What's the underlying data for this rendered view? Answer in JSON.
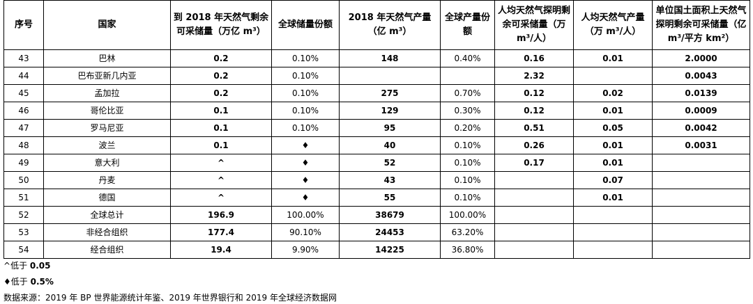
{
  "headers": [
    "序号",
    "国家",
    "到 2018 年天然气剩余可采储量（万亿 m³）",
    "全球储量份额",
    "2018 年天然气产量（亿 m³）",
    "全球产量份额",
    "人均天然气探明剩余可采储量（万 m³/人）",
    "人均天然气产量（万 m³/人）",
    "单位国土面积上天然气探明剩余可采储量（亿 m³/平方 km²）"
  ],
  "rows": [
    [
      "43",
      "巴林",
      "0.2",
      "0.10%",
      "148",
      "0.40%",
      "0.16",
      "0.01",
      "2.0000"
    ],
    [
      "44",
      "巴布亚新几内亚",
      "0.2",
      "0.10%",
      "",
      "",
      "2.32",
      "",
      "0.0043"
    ],
    [
      "45",
      "孟加拉",
      "0.2",
      "0.10%",
      "275",
      "0.70%",
      "0.12",
      "0.02",
      "0.0139"
    ],
    [
      "46",
      "哥伦比亚",
      "0.1",
      "0.10%",
      "129",
      "0.30%",
      "0.12",
      "0.01",
      "0.0009"
    ],
    [
      "47",
      "罗马尼亚",
      "0.1",
      "0.10%",
      "95",
      "0.20%",
      "0.51",
      "0.05",
      "0.0042"
    ],
    [
      "48",
      "波兰",
      "0.1",
      "♦",
      "40",
      "0.10%",
      "0.26",
      "0.01",
      "0.0031"
    ],
    [
      "49",
      "意大利",
      "^",
      "♦",
      "52",
      "0.10%",
      "0.17",
      "0.01",
      ""
    ],
    [
      "50",
      "丹麦",
      "^",
      "♦",
      "43",
      "0.10%",
      "",
      "0.07",
      ""
    ],
    [
      "51",
      "德国",
      "^",
      "♦",
      "55",
      "0.10%",
      "",
      "0.01",
      ""
    ],
    [
      "52",
      "全球总计",
      "196.9",
      "100.00%",
      "38679",
      "100.00%",
      "",
      "",
      ""
    ],
    [
      "53",
      "非经合组织",
      "177.4",
      "90.10%",
      "24453",
      "63.20%",
      "",
      "",
      ""
    ],
    [
      "54",
      "经合组织",
      "19.4",
      "9.90%",
      "14225",
      "36.80%",
      "",
      "",
      ""
    ]
  ],
  "notes": {
    "caret_symbol": "^",
    "caret_text": "低于 ",
    "caret_value": "0.05",
    "diamond_symbol": "♦",
    "diamond_text": "低于 ",
    "diamond_value": "0.5%",
    "source": "数据来源：2019 年 BP 世界能源统计年鉴、2019 年世界银行和 2019 年全球经济数据网"
  }
}
